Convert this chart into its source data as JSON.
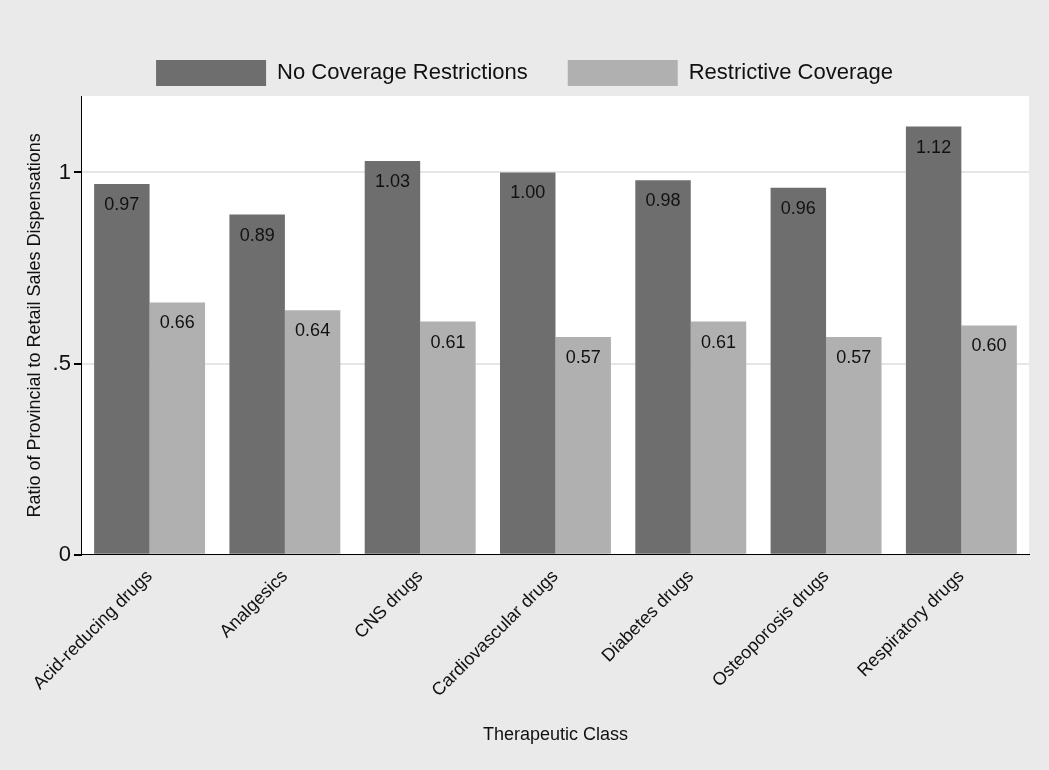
{
  "chart_data": {
    "type": "bar",
    "xlabel": "Therapeutic Class",
    "ylabel": "Ratio of Provincial to Retail Sales Dispensations",
    "categories": [
      "Acid-reducing drugs",
      "Analgesics",
      "CNS drugs",
      "Cardiovascular drugs",
      "Diabetes drugs",
      "Osteoporosis drugs",
      "Respiratory drugs"
    ],
    "series": [
      {
        "name": "No Coverage Restrictions",
        "color": "#6e6e6e",
        "values": [
          0.97,
          0.89,
          1.03,
          1.0,
          0.98,
          0.96,
          1.12
        ],
        "value_labels": [
          "0.97",
          "0.89",
          "1.03",
          "1.00",
          "0.98",
          "0.96",
          "1.12"
        ]
      },
      {
        "name": "Restrictive Coverage",
        "color": "#b0b0b0",
        "values": [
          0.66,
          0.64,
          0.61,
          0.57,
          0.61,
          0.57,
          0.6
        ],
        "value_labels": [
          "0.66",
          "0.64",
          "0.61",
          "0.57",
          "0.61",
          "0.57",
          "0.60"
        ]
      }
    ],
    "ylim": [
      0,
      1.2
    ],
    "yticks": [
      0,
      {
        "value": 0.5,
        "label": ".5"
      },
      1
    ],
    "grid": "y",
    "legend": "top"
  }
}
